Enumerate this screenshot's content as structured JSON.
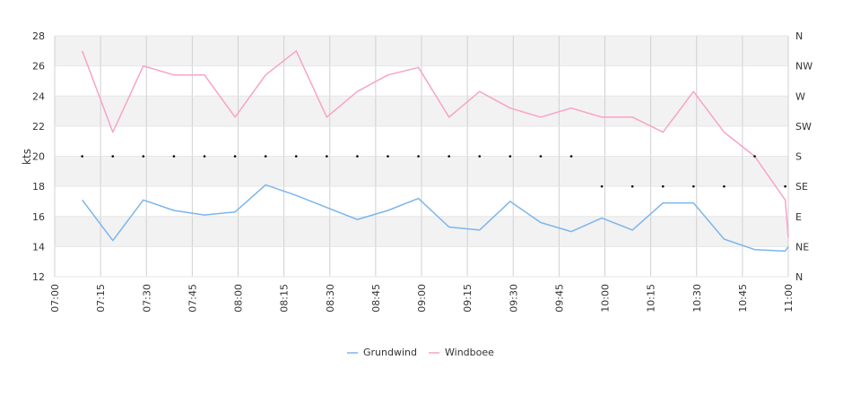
{
  "chart_data": {
    "type": "line",
    "ylabel": "kts",
    "ylim": [
      12,
      28
    ],
    "yticks": [
      12,
      14,
      16,
      18,
      20,
      22,
      24,
      26,
      28
    ],
    "xlim": [
      "07:00",
      "11:00"
    ],
    "xticks": [
      "07:00",
      "07:15",
      "07:30",
      "07:45",
      "08:00",
      "08:15",
      "08:30",
      "08:45",
      "09:00",
      "09:15",
      "09:30",
      "09:45",
      "10:00",
      "10:15",
      "10:30",
      "10:45",
      "11:00"
    ],
    "y2ticks": [
      "N",
      "NE",
      "E",
      "SE",
      "S",
      "SW",
      "W",
      "NW",
      "N"
    ],
    "grid": true,
    "legend": "bottom",
    "colors": {
      "grundwind": "#7cb5ec",
      "windboee": "#f7a3c8",
      "direction": "#000000",
      "band": "#f2f2f2",
      "grid": "#d0d0d0"
    },
    "series": [
      {
        "name": "Grundwind",
        "x": [
          "07:09",
          "07:19",
          "07:29",
          "07:39",
          "07:49",
          "07:59",
          "08:09",
          "08:19",
          "08:29",
          "08:39",
          "08:49",
          "08:59",
          "09:09",
          "09:19",
          "09:29",
          "09:39",
          "09:49",
          "09:59",
          "10:09",
          "10:19",
          "10:29",
          "10:39",
          "10:49",
          "10:59",
          "11:00"
        ],
        "values": [
          17.1,
          14.4,
          17.1,
          16.4,
          16.1,
          16.3,
          18.1,
          17.4,
          16.6,
          15.8,
          16.4,
          17.2,
          15.3,
          15.1,
          17.0,
          15.6,
          15.0,
          15.9,
          15.1,
          16.9,
          16.9,
          14.5,
          13.8,
          13.7,
          14.0
        ]
      },
      {
        "name": "Windboee",
        "x": [
          "07:09",
          "07:19",
          "07:29",
          "07:39",
          "07:49",
          "07:59",
          "08:09",
          "08:19",
          "08:29",
          "08:39",
          "08:49",
          "08:59",
          "09:09",
          "09:19",
          "09:29",
          "09:39",
          "09:49",
          "09:59",
          "10:09",
          "10:19",
          "10:29",
          "10:39",
          "10:49",
          "10:59",
          "11:00"
        ],
        "values": [
          27.0,
          21.6,
          26.0,
          25.4,
          25.4,
          22.6,
          25.4,
          27.0,
          22.6,
          24.3,
          25.4,
          25.9,
          22.6,
          24.3,
          23.2,
          22.6,
          23.2,
          22.6,
          22.6,
          21.6,
          24.3,
          21.6,
          20.0,
          17.1,
          14.6
        ]
      },
      {
        "name": "direction",
        "x": [
          "07:09",
          "07:19",
          "07:29",
          "07:39",
          "07:49",
          "07:59",
          "08:09",
          "08:19",
          "08:29",
          "08:39",
          "08:49",
          "08:59",
          "09:09",
          "09:19",
          "09:29",
          "09:39",
          "09:49",
          "09:59",
          "10:09",
          "10:19",
          "10:29",
          "10:39",
          "10:49",
          "10:59"
        ],
        "values": [
          "S",
          "S",
          "S",
          "S",
          "S",
          "S",
          "S",
          "S",
          "S",
          "S",
          "S",
          "S",
          "S",
          "S",
          "S",
          "S",
          "S",
          "SE",
          "SE",
          "SE",
          "SE",
          "SE",
          "S",
          "SE"
        ]
      }
    ]
  }
}
